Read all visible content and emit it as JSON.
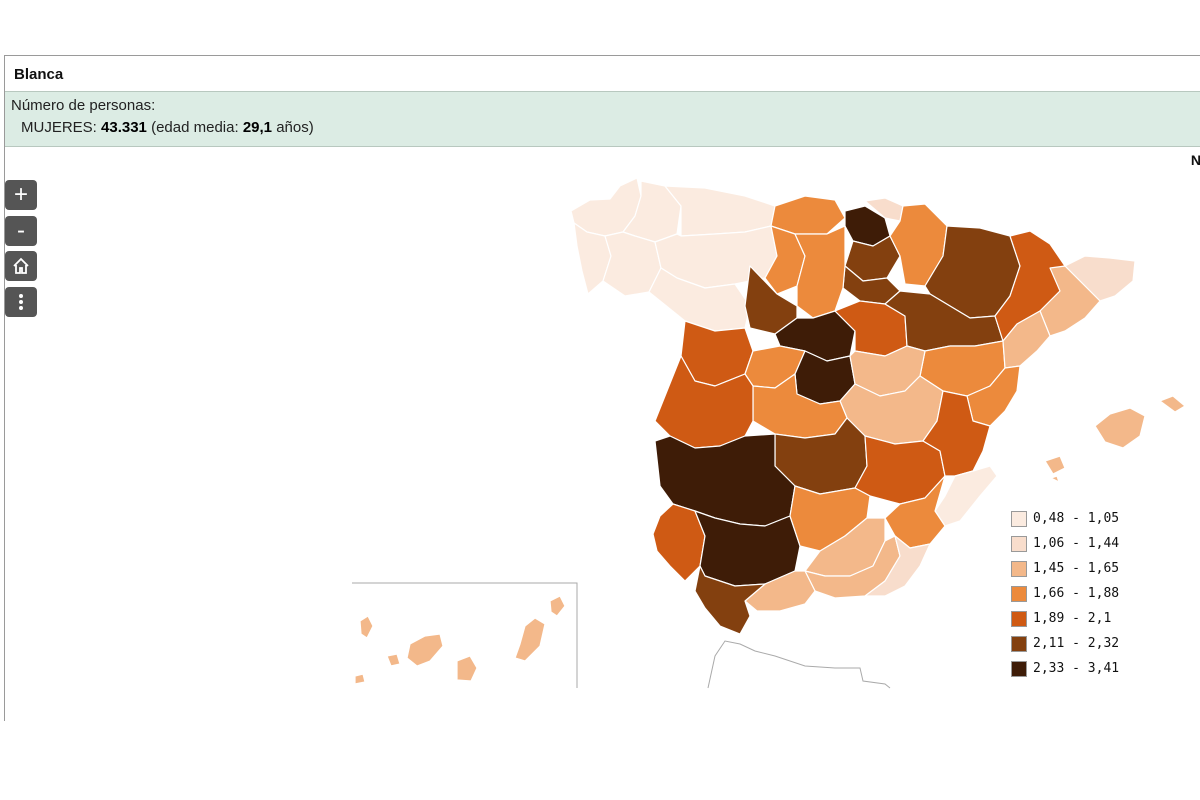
{
  "header": {
    "title": "Blanca"
  },
  "info": {
    "line1": "Número de personas:",
    "women_label": "MUJERES:",
    "women_count": "43.331",
    "age_label": "(edad media:",
    "age_value": "29,1",
    "age_unit": "años)"
  },
  "corner_text": "N",
  "controls": {
    "zoom_in": "+",
    "zoom_out": "-",
    "home_icon": "home-icon",
    "more_icon": "more-vertical-icon"
  },
  "legend": {
    "items": [
      {
        "label": "0,48 - 1,05",
        "color": "#fbebe0"
      },
      {
        "label": "1,06 - 1,44",
        "color": "#f8ddcc"
      },
      {
        "label": "1,45 - 1,65",
        "color": "#f3b88a"
      },
      {
        "label": "1,66 - 1,88",
        "color": "#ec8a3c"
      },
      {
        "label": "1,89 - 2,1",
        "color": "#cf5a14"
      },
      {
        "label": "2,11 - 2,32",
        "color": "#83400f"
      },
      {
        "label": "2,33 - 3,41",
        "color": "#3e1c07"
      }
    ]
  }
}
